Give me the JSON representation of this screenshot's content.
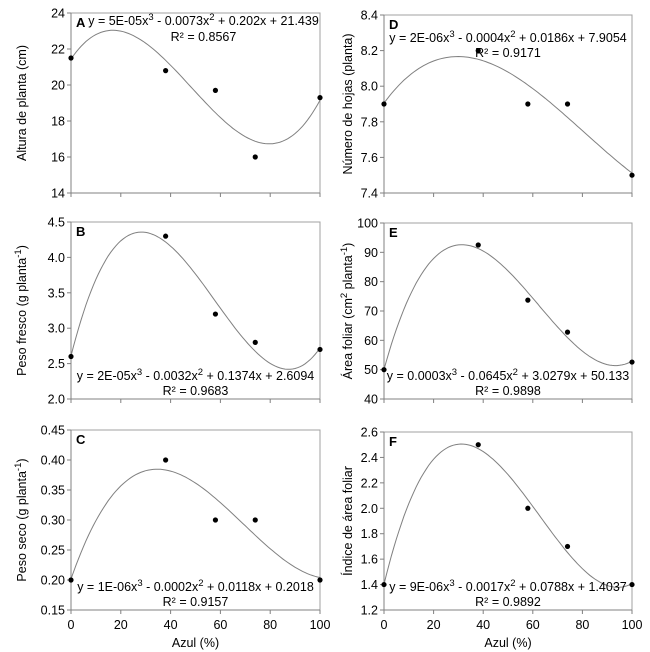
{
  "chart_data": [
    {
      "type": "scatter",
      "panel": "A",
      "ylabel": "Altura de planta (cm)",
      "xlabel": "",
      "xlim": [
        0,
        100
      ],
      "xticks": [
        0,
        20,
        40,
        60,
        80,
        100
      ],
      "show_xtick_labels": false,
      "ylim": [
        14,
        24
      ],
      "yticks": [
        14,
        16,
        18,
        20,
        22,
        24
      ],
      "ydecimals": 0,
      "x": [
        0,
        38,
        58,
        74,
        100
      ],
      "y": [
        21.5,
        20.8,
        19.7,
        16.0,
        19.3
      ],
      "equation": {
        "pre": "y = 5E-05x",
        "sup1": "3",
        "mid": " - 0.0073x",
        "sup2": "2",
        "post": " + 0.202x + 21.439"
      },
      "r2": "R² = 0.8567",
      "equation_placement": "top",
      "trendline": "polynomial-3"
    },
    {
      "type": "scatter",
      "panel": "D",
      "ylabel": "Número de hojas (planta)",
      "xlabel": "",
      "xlim": [
        0,
        100
      ],
      "xticks": [
        0,
        20,
        40,
        60,
        80,
        100
      ],
      "show_xtick_labels": false,
      "ylim": [
        7.4,
        8.4
      ],
      "yticks": [
        7.4,
        7.6,
        7.8,
        8.0,
        8.2,
        8.4
      ],
      "ydecimals": 1,
      "x": [
        0,
        38,
        58,
        74,
        100
      ],
      "y": [
        7.9,
        8.2,
        7.9,
        7.9,
        7.5
      ],
      "equation": {
        "pre": "y = 2E-06x",
        "sup1": "3",
        "mid": " - 0.0004x",
        "sup2": "2",
        "post": " + 0.0186x + 7.9054"
      },
      "r2": "R² = 0.9171",
      "equation_placement": "top-below-letter",
      "trendline": "polynomial-3"
    },
    {
      "type": "scatter",
      "panel": "B",
      "ylabel": "Peso fresco (g planta",
      "ylabel_sup": "-1",
      "ylabel_end": ")",
      "xlabel": "",
      "xlim": [
        0,
        100
      ],
      "xticks": [
        0,
        20,
        40,
        60,
        80,
        100
      ],
      "show_xtick_labels": false,
      "ylim": [
        2.0,
        4.5
      ],
      "yticks": [
        2.0,
        2.5,
        3.0,
        3.5,
        4.0,
        4.5
      ],
      "ydecimals": 1,
      "x": [
        0,
        38,
        58,
        74,
        100
      ],
      "y": [
        2.6,
        4.3,
        3.2,
        2.8,
        2.7
      ],
      "equation": {
        "pre": "y = 2E-05x",
        "sup1": "3",
        "mid": " - 0.0032x",
        "sup2": "2",
        "post": " + 0.1374x + 2.6094"
      },
      "r2": "R² = 0.9683",
      "equation_placement": "bottom",
      "trendline": "polynomial-3"
    },
    {
      "type": "scatter",
      "panel": "E",
      "ylabel": "Área foliar (cm",
      "ylabel_sup": "2",
      "ylabel_end": " planta",
      "ylabel_sup2": "-1",
      "ylabel_end2": ")",
      "xlabel": "",
      "xlim": [
        0,
        100
      ],
      "xticks": [
        0,
        20,
        40,
        60,
        80,
        100
      ],
      "show_xtick_labels": false,
      "ylim": [
        40,
        100
      ],
      "yticks": [
        40,
        50,
        60,
        70,
        80,
        90,
        100
      ],
      "ydecimals": 0,
      "x": [
        0,
        38,
        58,
        74,
        100
      ],
      "y": [
        50,
        92.5,
        73.7,
        62.8,
        52.6
      ],
      "equation": {
        "pre": "y = 0.0003x",
        "sup1": "3",
        "mid": " - 0.0645x",
        "sup2": "2",
        "post": " + 3.0279x + 50.133"
      },
      "r2": "R² = 0.9898",
      "equation_placement": "bottom",
      "trendline": "polynomial-3"
    },
    {
      "type": "scatter",
      "panel": "C",
      "ylabel": "Peso seco (g planta",
      "ylabel_sup": "-1",
      "ylabel_end": ")",
      "xlabel": "Azul (%)",
      "xlim": [
        0,
        100
      ],
      "xticks": [
        0,
        20,
        40,
        60,
        80,
        100
      ],
      "show_xtick_labels": true,
      "ylim": [
        0.15,
        0.45
      ],
      "yticks": [
        0.15,
        0.2,
        0.25,
        0.3,
        0.35,
        0.4,
        0.45
      ],
      "ydecimals": 2,
      "x": [
        0,
        38,
        58,
        74,
        100
      ],
      "y": [
        0.2,
        0.4,
        0.3,
        0.3,
        0.2
      ],
      "equation": {
        "pre": "y = 1E-06x",
        "sup1": "3",
        "mid": " - 0.0002x",
        "sup2": "2",
        "post": " + 0.0118x + 0.2018"
      },
      "r2": "R² = 0.9157",
      "equation_placement": "bottom",
      "trendline": "polynomial-3"
    },
    {
      "type": "scatter",
      "panel": "F",
      "ylabel": "Índice de área foliar",
      "xlabel": "Azul (%)",
      "xlim": [
        0,
        100
      ],
      "xticks": [
        0,
        20,
        40,
        60,
        80,
        100
      ],
      "show_xtick_labels": true,
      "ylim": [
        1.2,
        2.6
      ],
      "yticks": [
        1.2,
        1.4,
        1.6,
        1.8,
        2.0,
        2.2,
        2.4,
        2.6
      ],
      "ydecimals": 1,
      "x": [
        0,
        38,
        58,
        74,
        100
      ],
      "y": [
        1.4,
        2.5,
        2.0,
        1.7,
        1.4
      ],
      "equation": {
        "pre": "y = 9E-06x",
        "sup1": "3",
        "mid": " - 0.0017x",
        "sup2": "2",
        "post": " + 0.0788x + 1.4037"
      },
      "r2": "R² = 0.9892",
      "equation_placement": "bottom",
      "trendline": "polynomial-3"
    }
  ],
  "colors": {
    "points": "#000000",
    "trendline": "#808080",
    "frame": "#a0a0a0",
    "axis": "#808080"
  }
}
